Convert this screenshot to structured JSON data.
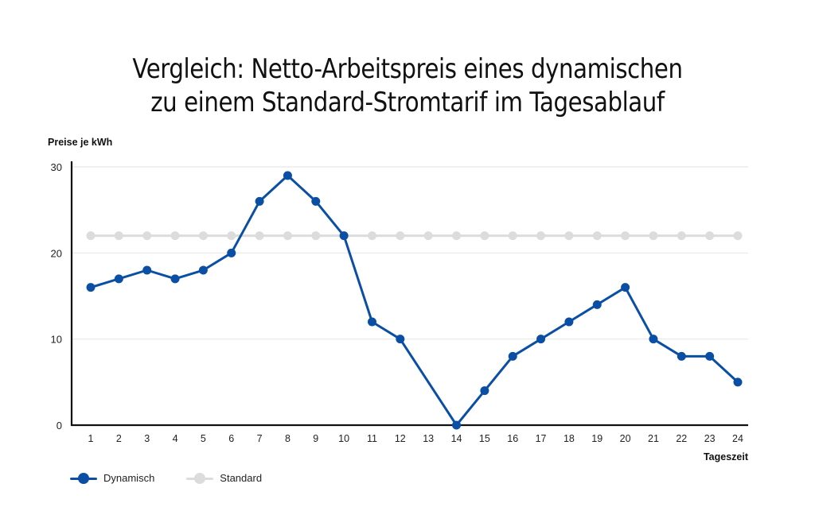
{
  "title": {
    "line1": "Vergleich: Netto-Arbeitspreis eines dynamischen",
    "line2": "zu einem Standard-Stromtarif im Tagesablauf"
  },
  "axes": {
    "y_label": "Preise je kWh",
    "x_label": "Tageszeit"
  },
  "legend": {
    "items": [
      {
        "label": "Dynamisch",
        "color": "#0a4fa3"
      },
      {
        "label": "Standard",
        "color": "#dcdcdc"
      }
    ]
  },
  "chart_data": {
    "type": "line",
    "title": "Vergleich: Netto-Arbeitspreis eines dynamischen zu einem Standard-Stromtarif im Tagesablauf",
    "xlabel": "Tageszeit",
    "ylabel": "Preise je kWh",
    "ylim": [
      0,
      30
    ],
    "yticks": [
      0,
      10,
      20,
      30
    ],
    "grid": true,
    "legend_position": "bottom-left",
    "x": [
      1,
      2,
      3,
      4,
      5,
      6,
      7,
      8,
      9,
      10,
      11,
      12,
      13,
      14,
      15,
      16,
      17,
      18,
      19,
      20,
      21,
      22,
      23,
      24
    ],
    "series": [
      {
        "name": "Dynamisch",
        "color": "#0a4fa3",
        "values": [
          16,
          17,
          18,
          17,
          18,
          20,
          26,
          29,
          26,
          22,
          12,
          10,
          null,
          0,
          4,
          8,
          10,
          12,
          14,
          16,
          10,
          8,
          8,
          5
        ]
      },
      {
        "name": "Standard",
        "color": "#dcdcdc",
        "values": [
          22,
          22,
          22,
          22,
          22,
          22,
          22,
          22,
          22,
          22,
          22,
          22,
          22,
          22,
          22,
          22,
          22,
          22,
          22,
          22,
          22,
          22,
          22,
          22
        ]
      }
    ]
  }
}
